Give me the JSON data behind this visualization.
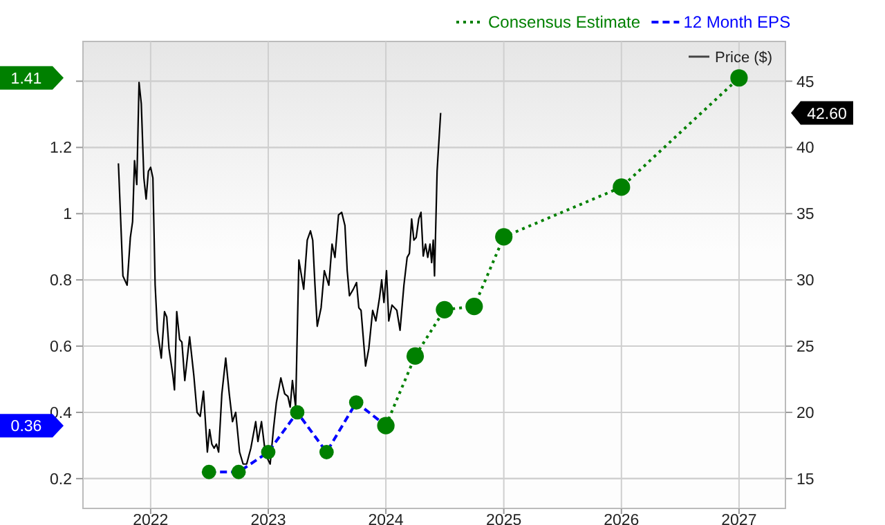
{
  "chart_data": {
    "type": "line",
    "xlim": [
      "2021-06-05",
      "2027-05-25"
    ],
    "xticks": [
      {
        "value": "2022-01-01",
        "label": "2022"
      },
      {
        "value": "2023-01-01",
        "label": "2023"
      },
      {
        "value": "2024-01-01",
        "label": "2024"
      },
      {
        "value": "2025-01-01",
        "label": "2025"
      },
      {
        "value": "2026-01-01",
        "label": "2026"
      },
      {
        "value": "2027-01-01",
        "label": "2027"
      }
    ],
    "ylim": [
      0.11,
      1.52
    ],
    "yticks": [
      0.2,
      0.4,
      0.6,
      0.8,
      1,
      1.2,
      {
        "value": 1.4,
        "label": null
      }
    ],
    "y2lim": [
      12.75,
      48
    ],
    "y2ticks": [
      15,
      20,
      25,
      30,
      35,
      40,
      45
    ],
    "grid": true,
    "legend": "top right",
    "annotations": [
      "1.41",
      "0.36",
      "42.60"
    ],
    "series": [
      {
        "name": "Consensus Estimate",
        "color": "#008000",
        "line_style": "dotted",
        "marker": "circle",
        "x": [
          "2024-01-01",
          "2024-04-01",
          "2024-07-01",
          "2024-10-01",
          "2025-01-01",
          "2026-01-01",
          "2027-01-01"
        ],
        "values": [
          0.36,
          0.57,
          0.71,
          0.72,
          0.93,
          1.08,
          1.41
        ]
      },
      {
        "name": "12 Month EPS",
        "color": "#0000ff",
        "colors": [
          "#008000",
          "#008000",
          "#008000",
          "#008000",
          "#008000",
          "#008000",
          "#008000"
        ],
        "line_style": "dashed",
        "marker": "circle",
        "x": [
          "2022-07-01",
          "2022-10-01",
          "2023-01-01",
          "2023-04-01",
          "2023-07-01",
          "2023-10-01",
          "2024-01-01"
        ],
        "values": [
          0.22,
          0.22,
          0.28,
          0.4,
          0.28,
          0.43,
          0.36
        ]
      },
      {
        "name": "Price ($)",
        "color": "#000000",
        "axis": "y2",
        "line_style": "solid",
        "marker": "none",
        "x": [
          "2021-09-23",
          "2021-10-07",
          "2021-10-20",
          "2021-10-30",
          "2021-11-06",
          "2021-11-12",
          "2021-11-19",
          "2021-11-26",
          "2021-12-03",
          "2021-12-11",
          "2021-12-18",
          "2021-12-25",
          "2022-01-01",
          "2022-01-08",
          "2022-01-15",
          "2022-01-22",
          "2022-02-03",
          "2022-02-13",
          "2022-02-20",
          "2022-02-27",
          "2022-03-11",
          "2022-03-16",
          "2022-03-23",
          "2022-04-01",
          "2022-04-08",
          "2022-04-17",
          "2022-05-02",
          "2022-05-15",
          "2022-05-25",
          "2022-06-04",
          "2022-06-14",
          "2022-06-26",
          "2022-07-03",
          "2022-07-10",
          "2022-07-17",
          "2022-07-24",
          "2022-07-31",
          "2022-08-10",
          "2022-08-22",
          "2022-09-02",
          "2022-09-12",
          "2022-09-22",
          "2022-10-04",
          "2022-10-15",
          "2022-10-26",
          "2022-11-08",
          "2022-11-23",
          "2022-11-30",
          "2022-12-11",
          "2022-12-21",
          "2022-12-28",
          "2023-01-07",
          "2023-01-17",
          "2023-01-26",
          "2023-02-09",
          "2023-02-21",
          "2023-03-03",
          "2023-03-10",
          "2023-03-17",
          "2023-03-27",
          "2023-04-06",
          "2023-04-21",
          "2023-05-02",
          "2023-05-12",
          "2023-05-19",
          "2023-05-26",
          "2023-06-02",
          "2023-06-14",
          "2023-06-24",
          "2023-07-08",
          "2023-07-18",
          "2023-07-27",
          "2023-08-07",
          "2023-08-17",
          "2023-08-27",
          "2023-09-03",
          "2023-09-10",
          "2023-09-22",
          "2023-10-02",
          "2023-10-09",
          "2023-10-16",
          "2023-10-30",
          "2023-11-09",
          "2023-11-21",
          "2023-12-01",
          "2023-12-12",
          "2023-12-19",
          "2023-12-26",
          "2024-01-03",
          "2024-01-10",
          "2024-01-20",
          "2024-02-04",
          "2024-02-14",
          "2024-02-26",
          "2024-03-07",
          "2024-03-14",
          "2024-03-21",
          "2024-03-28",
          "2024-04-04",
          "2024-04-12",
          "2024-04-19",
          "2024-04-26",
          "2024-05-03",
          "2024-05-10",
          "2024-05-17",
          "2024-05-22",
          "2024-05-27",
          "2024-05-31",
          "2024-06-08",
          "2024-06-19"
        ],
        "values": [
          38.8,
          30.3,
          29.6,
          33.2,
          34.4,
          39.0,
          37.2,
          44.9,
          43.3,
          37.7,
          36.1,
          38.2,
          38.5,
          37.7,
          29.6,
          26.2,
          24.1,
          27.6,
          27.2,
          24.8,
          22.8,
          21.7,
          27.6,
          25.5,
          25.3,
          22.4,
          25.7,
          22.8,
          20.0,
          19.7,
          21.6,
          17.0,
          18.7,
          17.6,
          17.3,
          17.6,
          17.0,
          21.4,
          24.1,
          21.4,
          19.3,
          20.0,
          17.0,
          16.1,
          16.1,
          17.3,
          19.3,
          17.8,
          19.3,
          17.3,
          16.6,
          16.1,
          18.7,
          20.7,
          22.6,
          21.4,
          21.2,
          20.4,
          22.4,
          20.4,
          31.5,
          29.3,
          33.0,
          33.7,
          33.0,
          29.6,
          26.5,
          27.9,
          30.7,
          29.6,
          32.7,
          31.7,
          34.9,
          35.1,
          34.1,
          30.7,
          28.8,
          29.3,
          29.8,
          27.9,
          27.7,
          23.5,
          24.8,
          27.7,
          26.9,
          28.6,
          30.0,
          28.3,
          30.7,
          26.9,
          28.1,
          27.7,
          26.2,
          29.6,
          31.7,
          32.0,
          34.6,
          33.0,
          33.2,
          34.6,
          35.1,
          31.8,
          32.7,
          31.7,
          32.7,
          31.3,
          33.0,
          30.3,
          38.2,
          42.6
        ]
      }
    ]
  }
}
